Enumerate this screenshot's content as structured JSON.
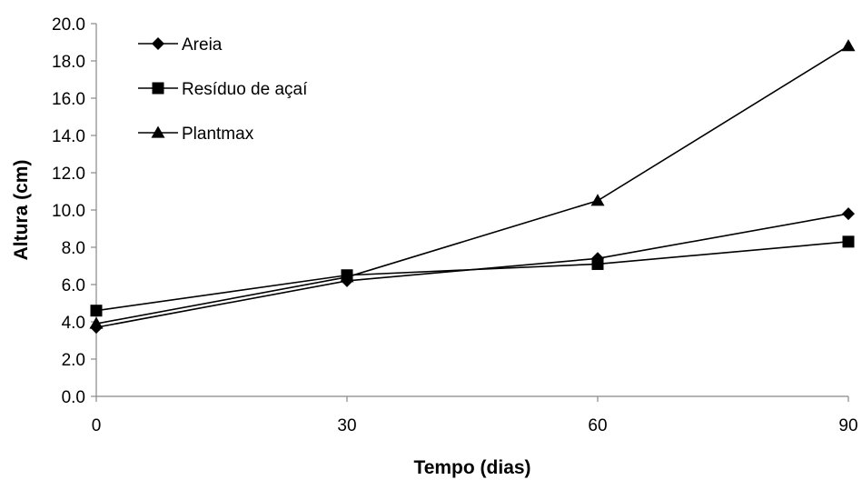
{
  "chart_data": {
    "type": "line",
    "x": [
      0,
      30,
      60,
      90
    ],
    "xlabel": "Tempo (dias)",
    "ylabel": "Altura (cm)",
    "ylim": [
      0,
      20
    ],
    "y_ticks": [
      "0.0",
      "2.0",
      "4.0",
      "6.0",
      "8.0",
      "10.0",
      "12.0",
      "14.0",
      "16.0",
      "18.0",
      "20.0"
    ],
    "x_ticks": [
      "0",
      "30",
      "60",
      "90"
    ],
    "grid": false,
    "legend_position": "top-left",
    "series": [
      {
        "name": "Areia",
        "marker": "diamond",
        "values": [
          3.7,
          6.2,
          7.4,
          9.8
        ]
      },
      {
        "name": "Resíduo de açaí",
        "marker": "square",
        "values": [
          4.6,
          6.5,
          7.1,
          8.3
        ]
      },
      {
        "name": "Plantmax",
        "marker": "triangle",
        "values": [
          3.9,
          6.4,
          10.5,
          18.8
        ]
      }
    ],
    "colors": {
      "line": "#000000",
      "marker": "#000000"
    }
  }
}
